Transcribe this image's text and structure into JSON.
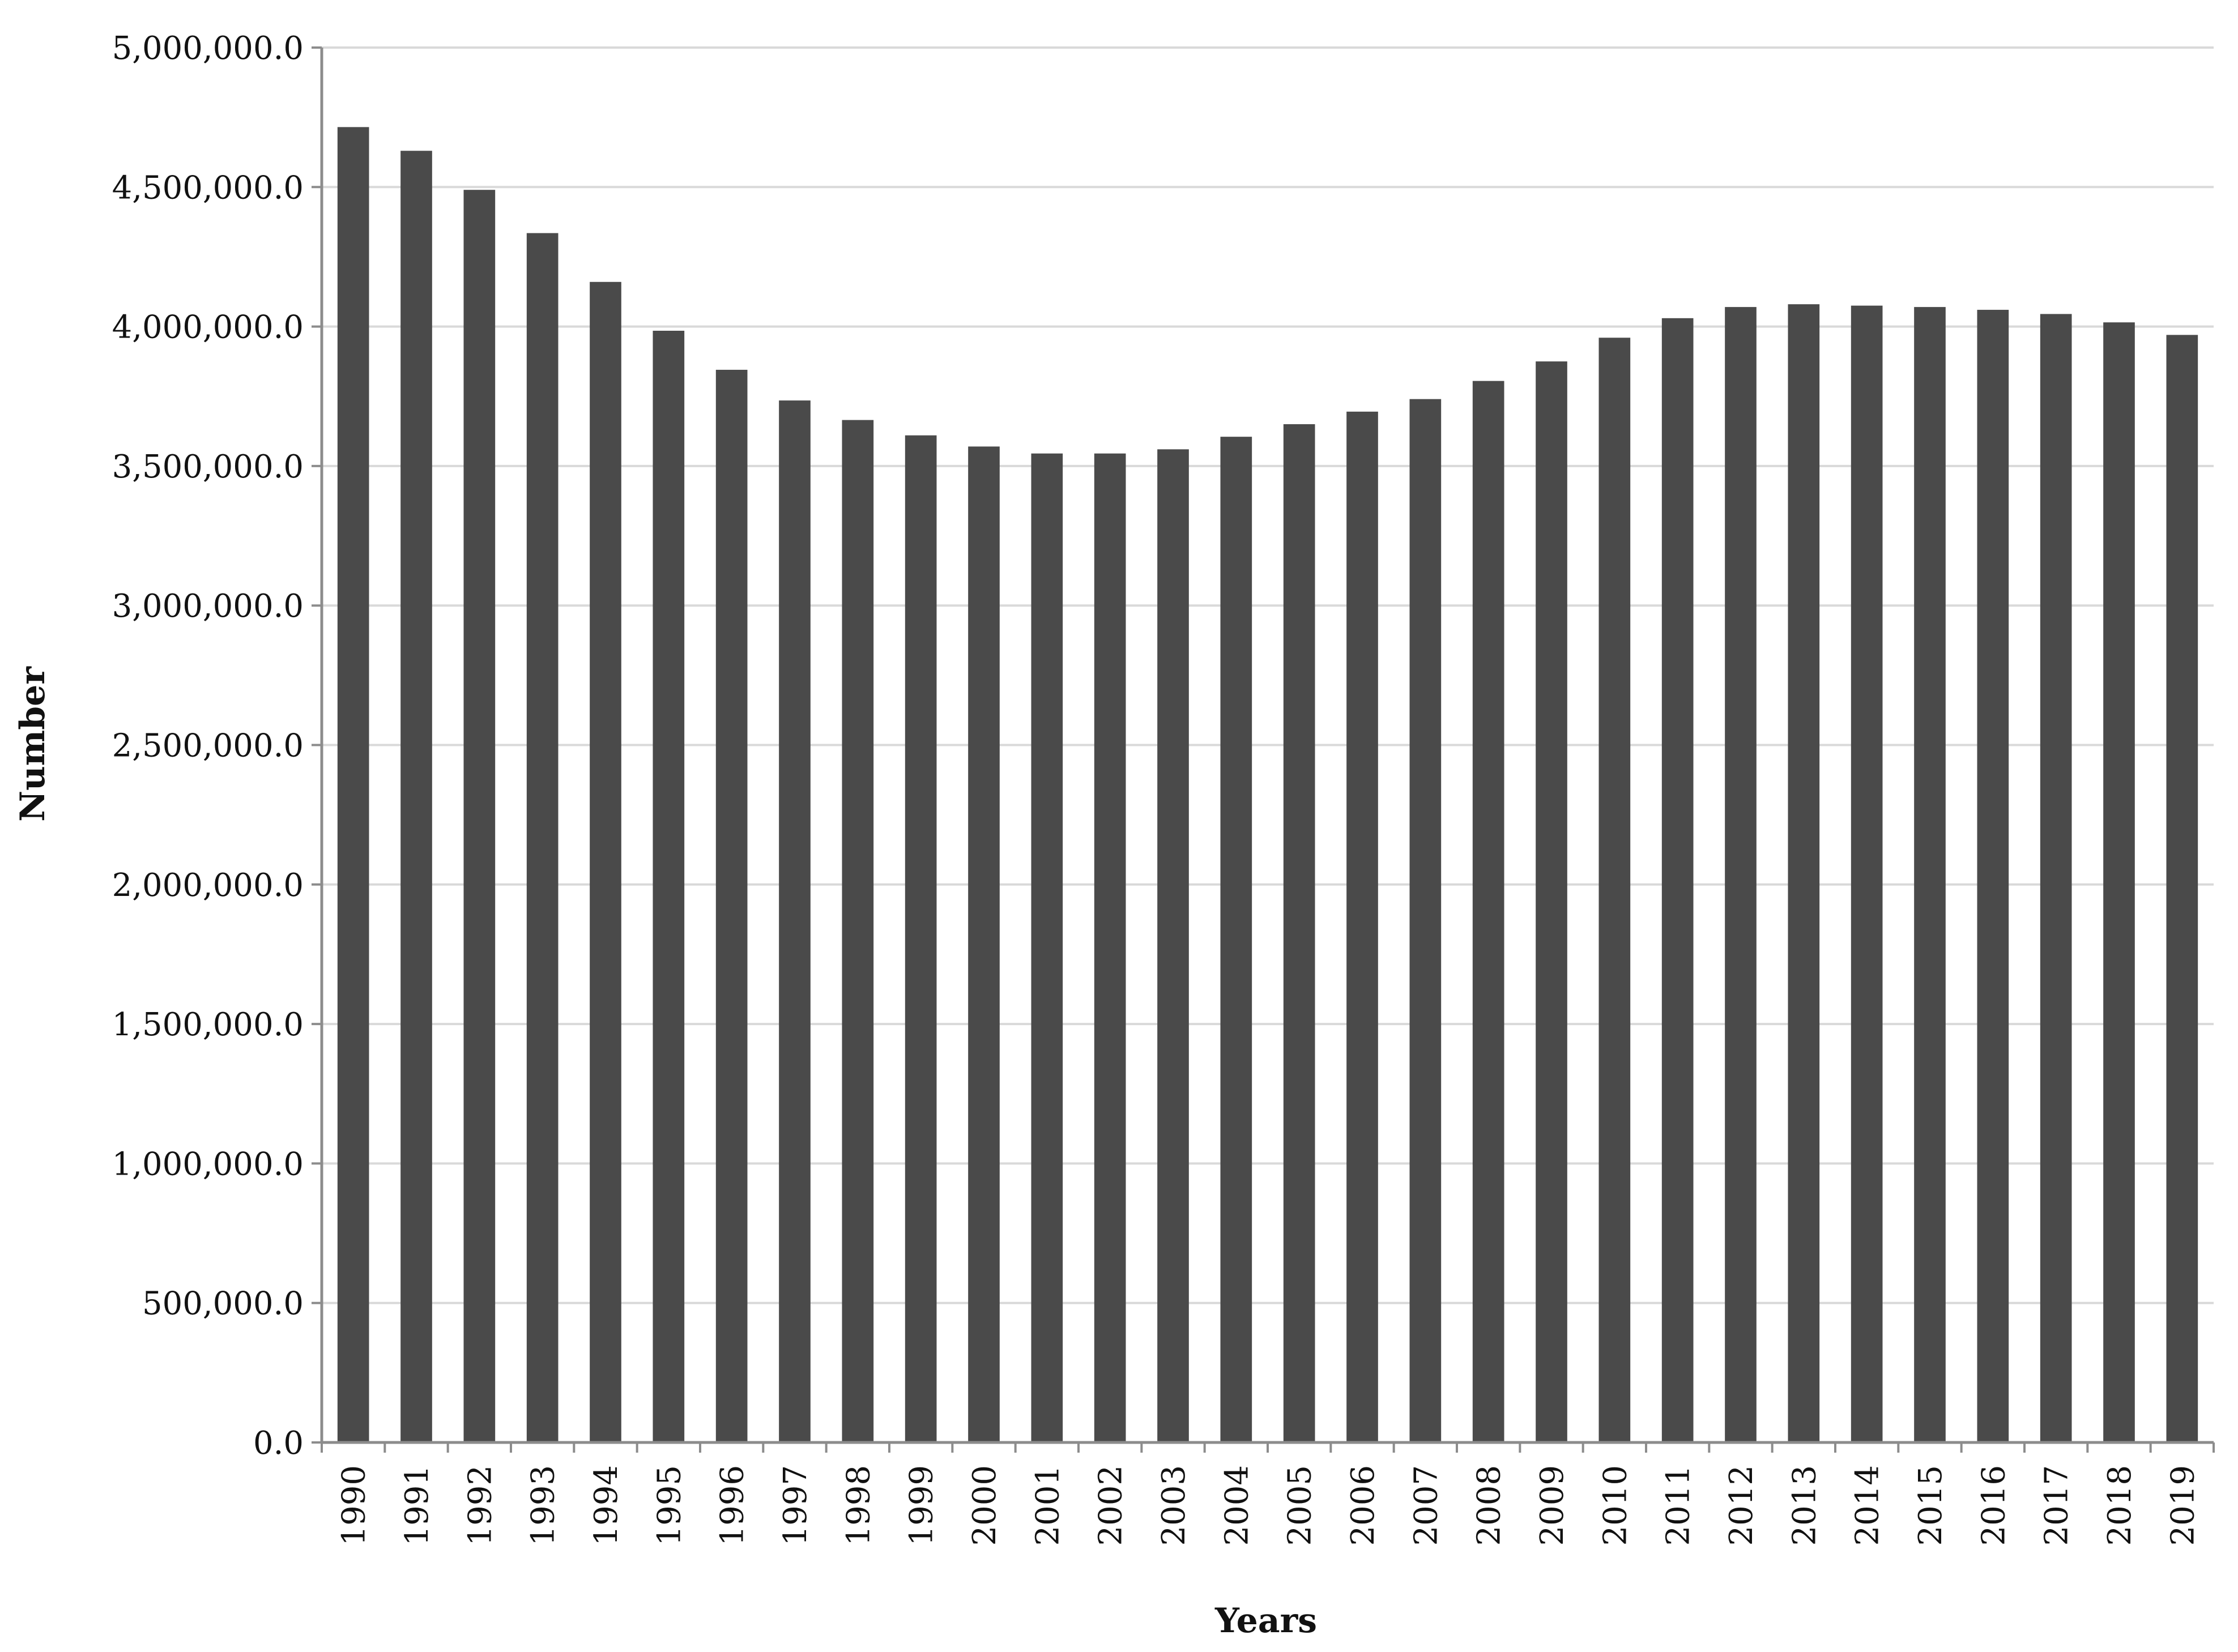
{
  "chart_data": {
    "type": "bar",
    "title": "",
    "xlabel": "Years",
    "ylabel": "Number",
    "ylim": [
      0,
      5000000
    ],
    "ytick_values": [
      0,
      500000,
      1000000,
      1500000,
      2000000,
      2500000,
      3000000,
      3500000,
      4000000,
      4500000,
      5000000
    ],
    "ytick_labels": [
      "0.0",
      "500,000.0",
      "1,000,000.0",
      "1,500,000.0",
      "2,000,000.0",
      "2,500,000.0",
      "3,000,000.0",
      "3,500,000.0",
      "4,000,000.0",
      "4,500,000.0",
      "5,000,000.0"
    ],
    "grid": true,
    "legend": "none",
    "bar_color": "#4a4a4a",
    "categories": [
      "1990",
      "1991",
      "1992",
      "1993",
      "1994",
      "1995",
      "1996",
      "1997",
      "1998",
      "1999",
      "2000",
      "2001",
      "2002",
      "2003",
      "2004",
      "2005",
      "2006",
      "2007",
      "2008",
      "2009",
      "2010",
      "2011",
      "2012",
      "2013",
      "2014",
      "2015",
      "2016",
      "2017",
      "2018",
      "2019"
    ],
    "values": [
      4715000,
      4630000,
      4490000,
      4335000,
      4160000,
      3985000,
      3845000,
      3735000,
      3665000,
      3610000,
      3570000,
      3545000,
      3545000,
      3560000,
      3605000,
      3650000,
      3695000,
      3740000,
      3805000,
      3875000,
      3960000,
      4030000,
      4070000,
      4080000,
      4075000,
      4070000,
      4060000,
      4045000,
      4015000,
      3970000
    ]
  }
}
